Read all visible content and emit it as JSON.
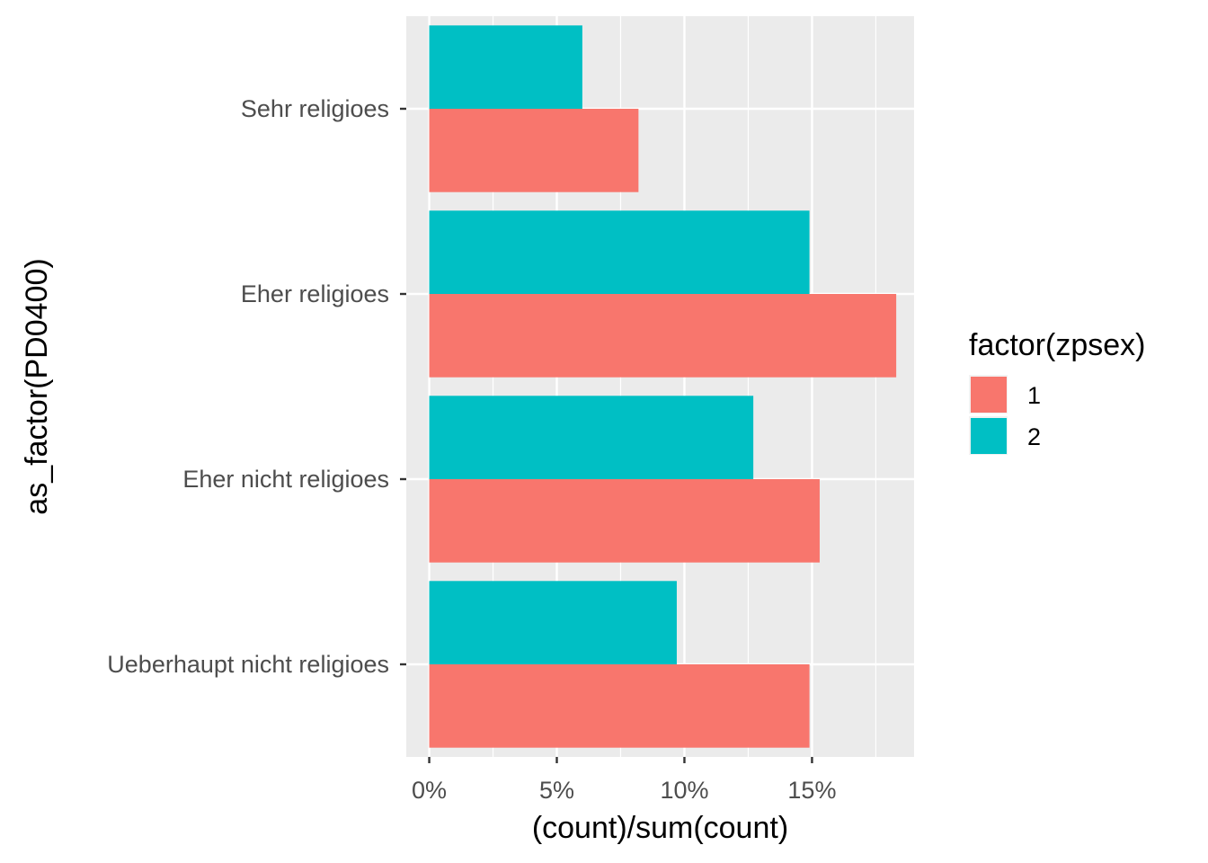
{
  "chart_data": {
    "type": "bar",
    "orientation": "horizontal",
    "title": "",
    "xlabel": "(count)/sum(count)",
    "ylabel": "as_factor(PD0400)",
    "x_ticks": [
      "0%",
      "5%",
      "10%",
      "15%"
    ],
    "x_tick_values": [
      0,
      5,
      10,
      15
    ],
    "xlim": [
      -0.9,
      19.0
    ],
    "categories": [
      "Sehr religioes",
      "Eher religioes",
      "Eher nicht religioes",
      "Ueberhaupt nicht religioes"
    ],
    "series": [
      {
        "name": "1",
        "color": "#F8766D",
        "values": [
          8.2,
          18.3,
          15.3,
          14.9
        ]
      },
      {
        "name": "2",
        "color": "#00BFC4",
        "values": [
          6.0,
          14.9,
          12.7,
          9.7
        ]
      }
    ],
    "legend": {
      "title": "factor(zpsex)",
      "position": "right"
    },
    "grid": true
  }
}
